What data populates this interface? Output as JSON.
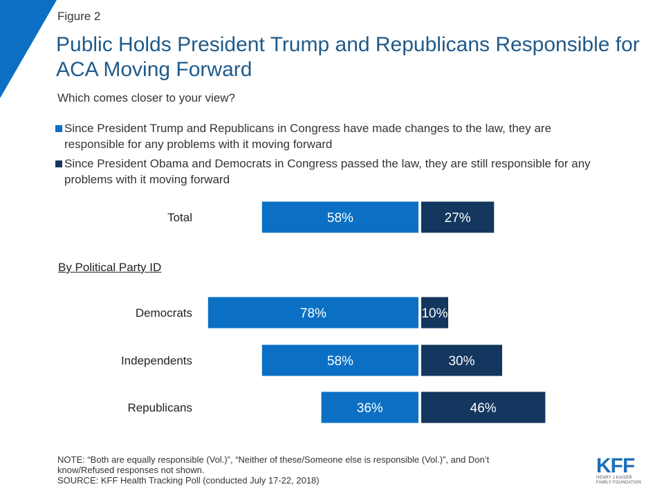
{
  "figure_label": "Figure 2",
  "title": "Public Holds President Trump and Republicans Responsible for ACA Moving Forward",
  "subtitle": "Which comes closer to your view?",
  "legend": [
    {
      "line1": "Since President Trump and Republicans in Congress have made changes to the law, they are",
      "line2": "responsible for any problems with it moving forward",
      "color": "#0b70c4"
    },
    {
      "line1": "Since President Obama and Democrats in Congress passed the law, they are still responsible for any",
      "line2": "problems with it moving forward",
      "color": "#13375e"
    }
  ],
  "section_label": "By Political Party ID",
  "chart_data": {
    "type": "bar",
    "orientation": "horizontal diverging",
    "categories": [
      "Total",
      "Democrats",
      "Independents",
      "Republicans"
    ],
    "series": [
      {
        "name": "Since President Trump and Republicans in Congress have made changes to the law, they are responsible for any problems with it moving forward",
        "values": [
          58,
          78,
          58,
          36
        ],
        "color": "#0b70c4"
      },
      {
        "name": "Since President Obama and Democrats in Congress passed the law, they are still responsible for any problems with it moving forward",
        "values": [
          27,
          10,
          30,
          46
        ],
        "color": "#13375e"
      }
    ],
    "data_labels": [
      [
        "58%",
        "78%",
        "58%",
        "36%"
      ],
      [
        "27%",
        "10%",
        "30%",
        "46%"
      ]
    ]
  },
  "note_lines": [
    "NOTE: “Both are equally responsible (Vol.)”, “Neither of these/Someone else is responsible (Vol.)”, and Don’t",
    "know/Refused responses not shown."
  ],
  "source": "SOURCE: KFF Health Tracking Poll (conducted July 17-22, 2018)",
  "logo": {
    "name": "KFF",
    "line1": "HENRY J KAISER",
    "line2": "FAMILY FOUNDATION"
  },
  "colors": {
    "accent": "#0b70c4",
    "dark": "#13375e",
    "title": "#1f5a8a"
  }
}
